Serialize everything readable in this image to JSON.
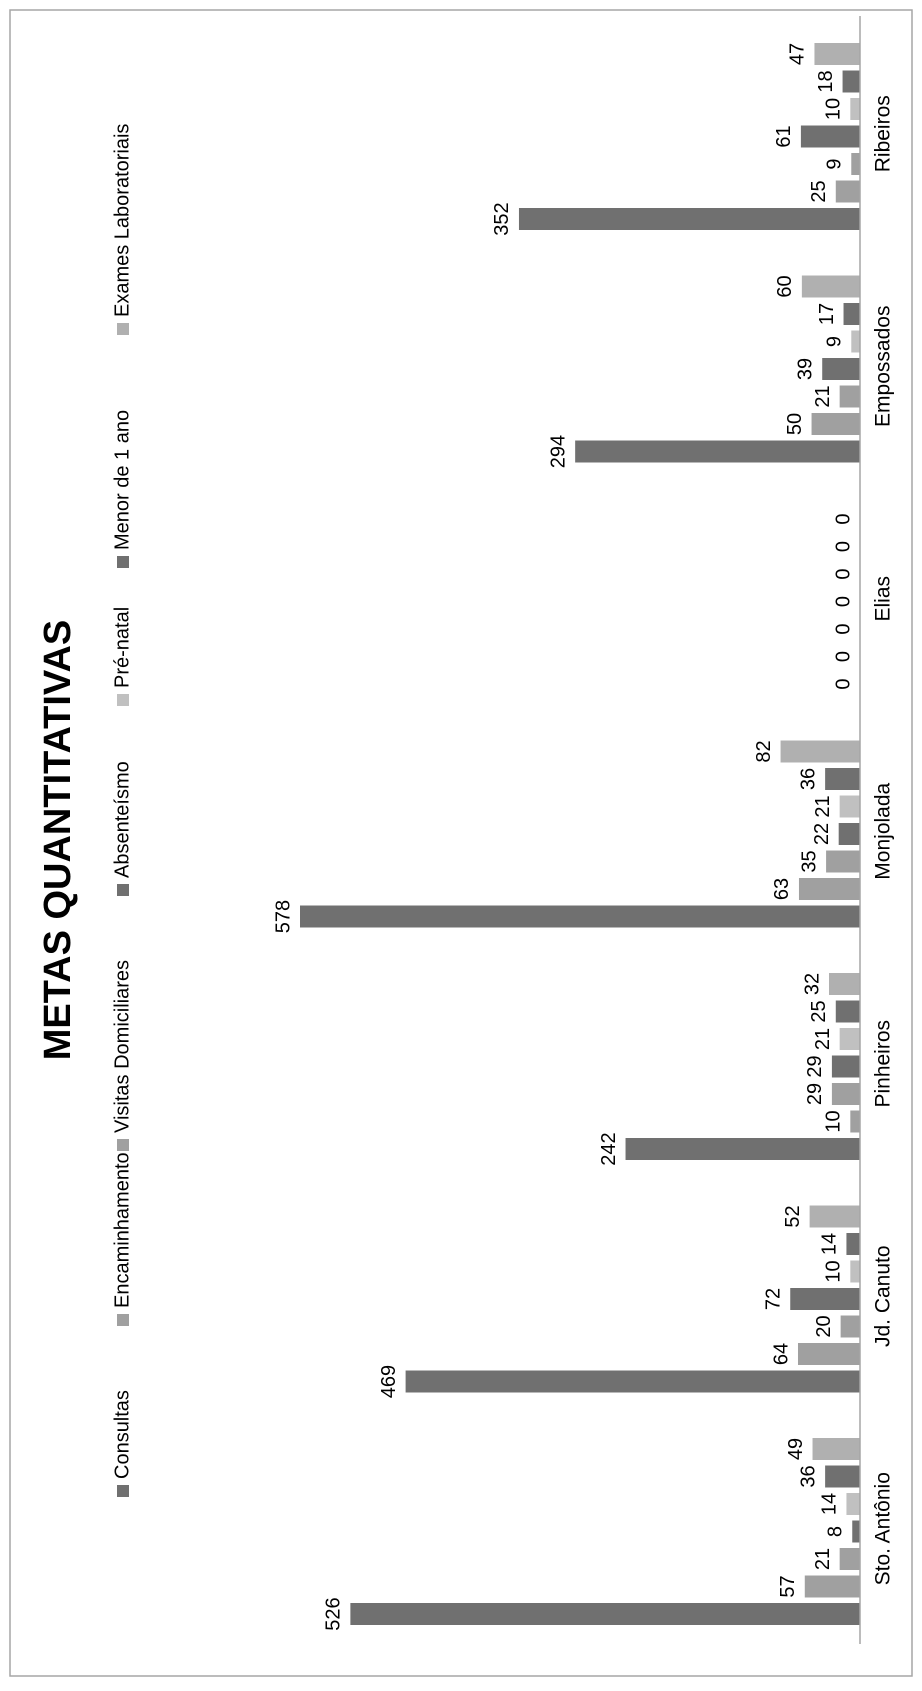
{
  "chart_data": {
    "type": "bar",
    "title": "METAS QUANTITATIVAS",
    "xlabel": "",
    "ylabel": "",
    "ylim": [
      0,
      600
    ],
    "grid": false,
    "legend_position": "top",
    "orientation": "rotated-90",
    "categories": [
      "Sto. Antônio",
      "Jd. Canuto",
      "Pinheiros",
      "Monjolada",
      "Elias",
      "Empossados",
      "Ribeiros"
    ],
    "series": [
      {
        "name": "Consultas",
        "color": "#707070",
        "values": [
          526,
          469,
          242,
          578,
          0,
          294,
          352
        ]
      },
      {
        "name": "Encaminhamento",
        "color": "#a0a0a0",
        "values": [
          57,
          64,
          10,
          63,
          0,
          50,
          25
        ]
      },
      {
        "name": "Visitas Domiciliares",
        "color": "#a0a0a0",
        "values": [
          21,
          20,
          29,
          35,
          0,
          21,
          9
        ]
      },
      {
        "name": "Absenteísmo",
        "color": "#707070",
        "values": [
          8,
          72,
          29,
          22,
          0,
          39,
          61
        ]
      },
      {
        "name": "Pré-natal",
        "color": "#c0c0c0",
        "values": [
          14,
          10,
          21,
          21,
          0,
          9,
          10
        ]
      },
      {
        "name": "Menor de 1 ano",
        "color": "#707070",
        "values": [
          36,
          14,
          25,
          36,
          0,
          17,
          18
        ]
      },
      {
        "name": "Exames Laboratoriais",
        "color": "#b0b0b0",
        "values": [
          49,
          52,
          32,
          82,
          0,
          60,
          47
        ]
      }
    ]
  }
}
